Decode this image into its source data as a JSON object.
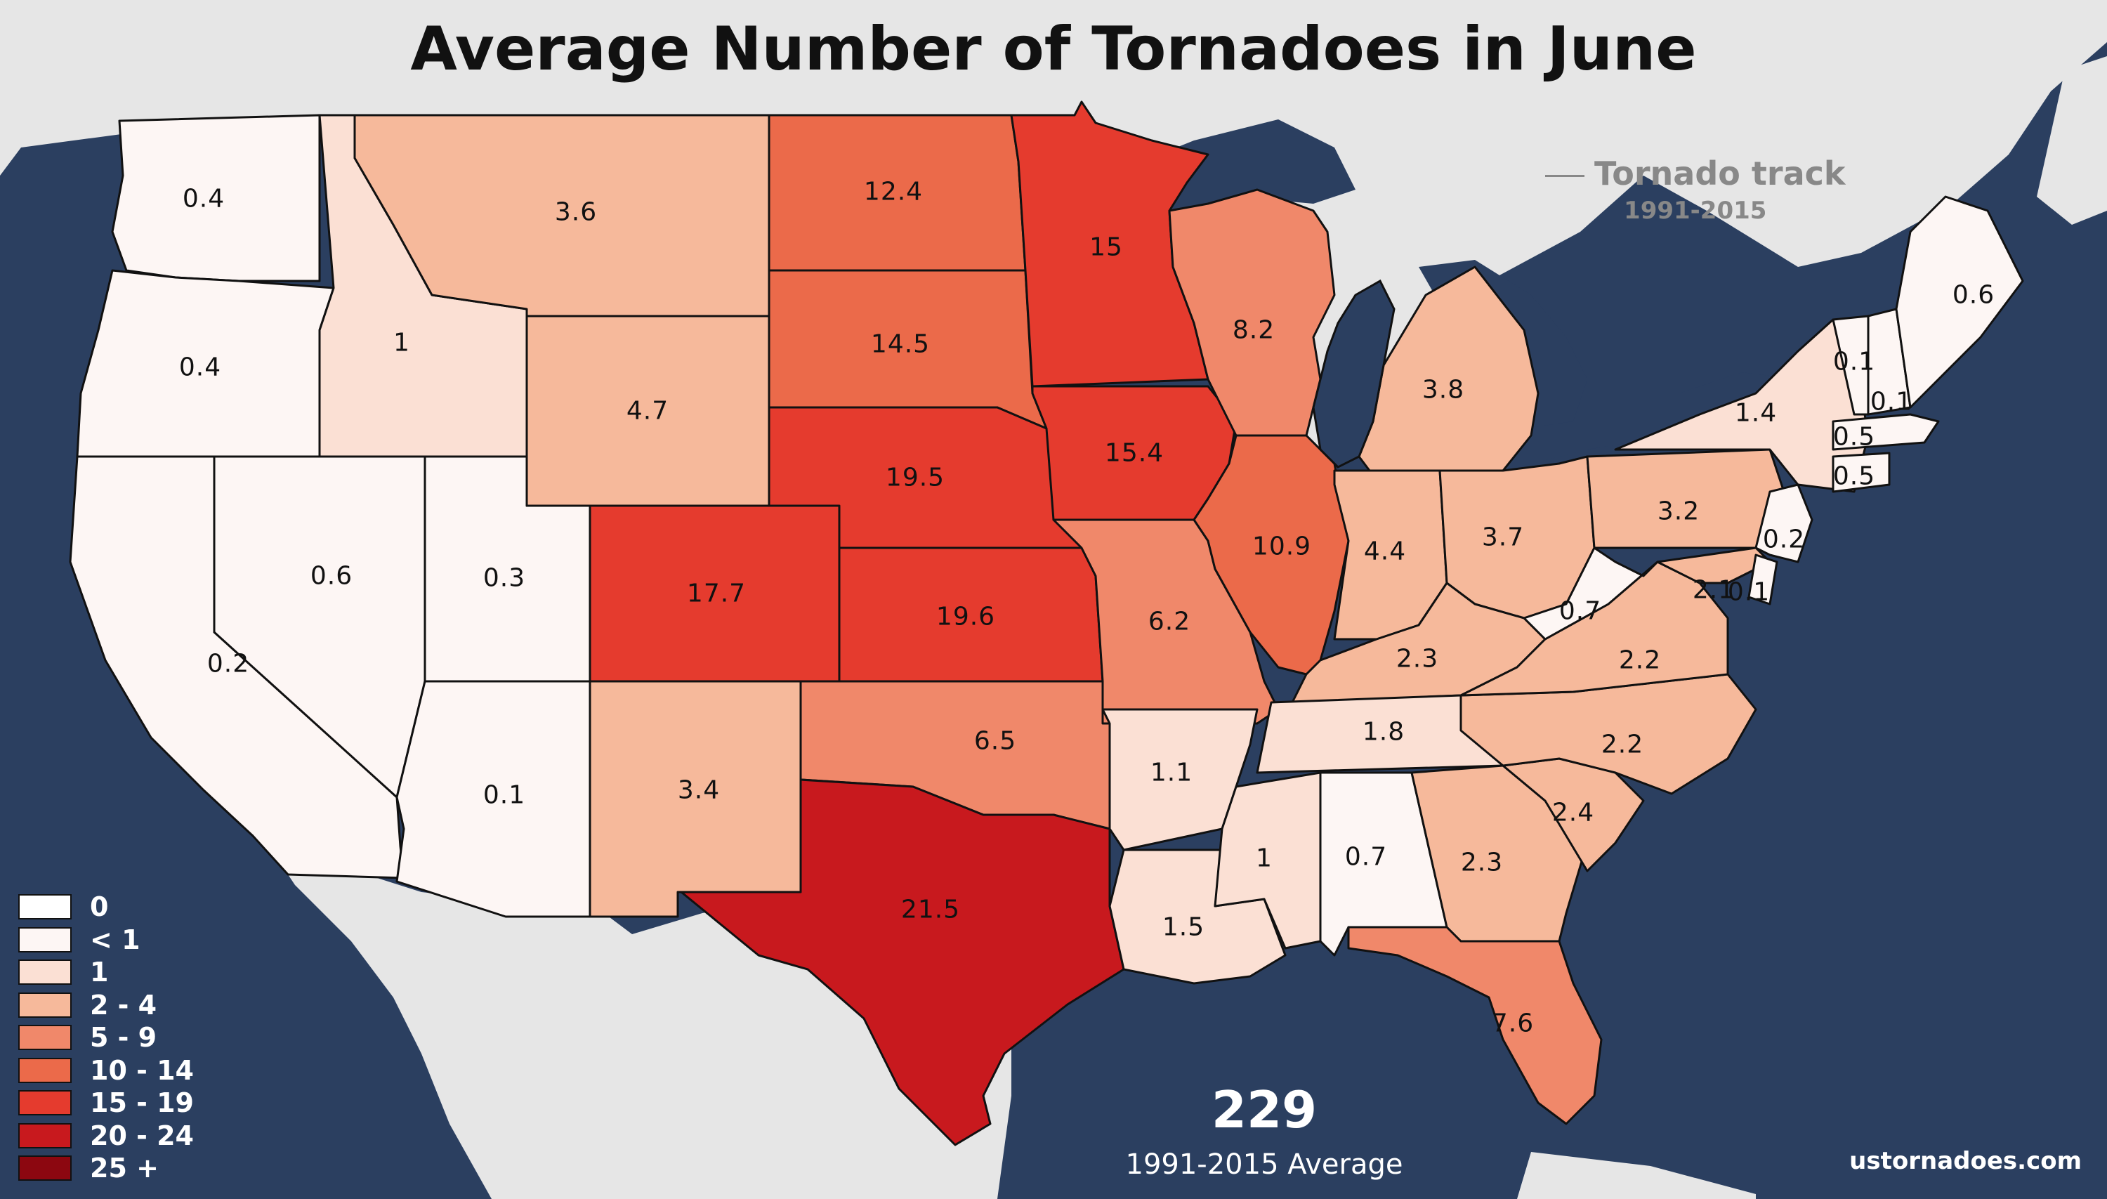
{
  "title": "Average Number of Tornadoes in June",
  "track_key": {
    "label": "Tornado track",
    "years": "1991-2015"
  },
  "total": {
    "value": "229",
    "caption": "1991-2015 Average"
  },
  "credit": "ustornadoes.com",
  "colors": {
    "water": "#2b3f60",
    "land": "#e6e6e6",
    "bins": {
      "0": "#ffffff",
      "lt1": "#fdf6f4",
      "1": "#fbe0d4",
      "2-4": "#f6b99b",
      "5-9": "#f0886a",
      "10-14": "#eb6a4a",
      "15-19": "#e53b2e",
      "20-24": "#c8191e",
      "25+": "#8c0710"
    }
  },
  "legend": [
    {
      "label": "0",
      "color": "#ffffff"
    },
    {
      "label": "< 1",
      "color": "#fdf6f4"
    },
    {
      "label": "1",
      "color": "#fbe0d4"
    },
    {
      "label": "2 - 4",
      "color": "#f6b99b"
    },
    {
      "label": "5 - 9",
      "color": "#f0886a"
    },
    {
      "label": "10 - 14",
      "color": "#eb6a4a"
    },
    {
      "label": "15 - 19",
      "color": "#e53b2e"
    },
    {
      "label": "20 - 24",
      "color": "#c8191e"
    },
    {
      "label": "25 +",
      "color": "#8c0710"
    }
  ],
  "states": {
    "WA": "0.4",
    "OR": "0.4",
    "CA": "0.2",
    "ID": "1",
    "NV": "0.6",
    "UT": "0.3",
    "AZ": "0.1",
    "MT": "3.6",
    "WY": "4.7",
    "CO": "17.7",
    "NM": "3.4",
    "ND": "12.4",
    "SD": "14.5",
    "NE": "19.5",
    "KS": "19.6",
    "OK": "6.5",
    "TX": "21.5",
    "MN": "15",
    "IA": "15.4",
    "MO": "6.2",
    "AR": "1.1",
    "LA": "1.5",
    "WI": "8.2",
    "IL": "10.9",
    "MI": "3.8",
    "IN": "4.4",
    "OH": "3.7",
    "KY": "2.3",
    "TN": "1.8",
    "MS": "1",
    "AL": "0.7",
    "GA": "2.3",
    "FL": "7.6",
    "SC": "2.4",
    "NC": "2.2",
    "VA": "2.2",
    "WV": "0.7",
    "PA": "3.2",
    "NY": "1.4",
    "VT": "0.1",
    "NH": "0.1",
    "ME": "0.6",
    "MA": "0.5",
    "CT": "0.5",
    "NJ": "0.2",
    "MD": "2.1",
    "DE": "0.1"
  }
}
